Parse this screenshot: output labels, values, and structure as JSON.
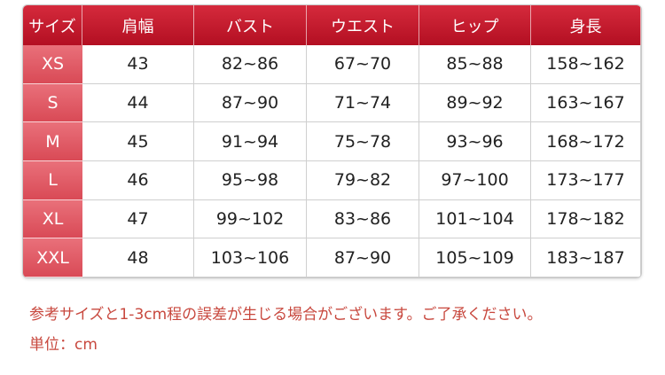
{
  "table": {
    "header": [
      "サイズ",
      "肩幅",
      "バスト",
      "ウエスト",
      "ヒップ",
      "身長"
    ],
    "rows": [
      [
        "XS",
        "43",
        "82~86",
        "67~70",
        "85~88",
        "158~162"
      ],
      [
        "S",
        "44",
        "87~90",
        "71~74",
        "89~92",
        "163~167"
      ],
      [
        "M",
        "45",
        "91~94",
        "75~78",
        "93~96",
        "168~172"
      ],
      [
        "L",
        "46",
        "95~98",
        "79~82",
        "97~100",
        "173~177"
      ],
      [
        "XL",
        "47",
        "99~102",
        "83~86",
        "101~104",
        "178~182"
      ],
      [
        "XXL",
        "48",
        "103~106",
        "87~90",
        "105~109",
        "183~187"
      ]
    ]
  },
  "notes": [
    "参考サイズと1-3cm程の誤差が生じる場合がございます。ご了承ください。",
    "単位：cm"
  ]
}
